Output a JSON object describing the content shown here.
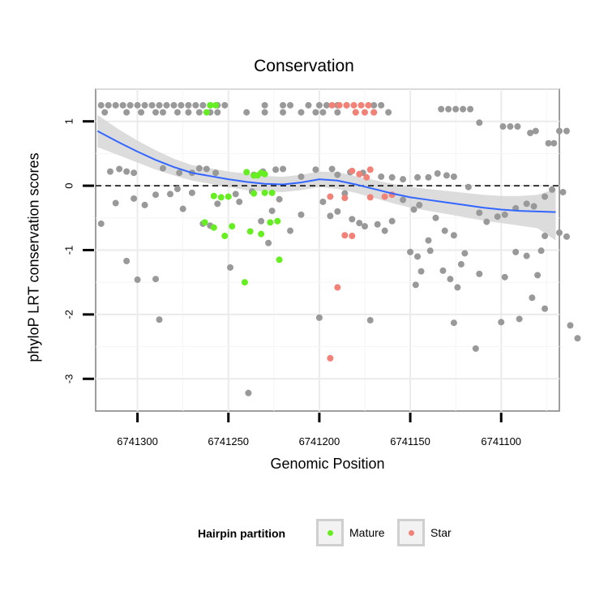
{
  "chart_data": {
    "type": "scatter",
    "title": "Conservation",
    "xlabel": "Genomic Position",
    "ylabel": "phyloP LRT conservation scores",
    "x_reversed": true,
    "xlim": [
      6741323,
      6741068
    ],
    "ylim": [
      -3.5,
      1.5
    ],
    "x_ticks": [
      6741300,
      6741250,
      6741200,
      6741150,
      6741100
    ],
    "y_ticks": [
      -3,
      -2,
      -1,
      0,
      1
    ],
    "grid": true,
    "reference_line": {
      "y": 0,
      "style": "dashed"
    },
    "legend": {
      "title": "Hairpin partition",
      "position": "bottom",
      "entries": [
        {
          "label": "Mature",
          "color": "#66ee22"
        },
        {
          "label": "Star",
          "color": "#f28177"
        }
      ]
    },
    "colors": {
      "other": "#999999",
      "Mature": "#66ee22",
      "Star": "#f28177",
      "smooth": "#3366ff",
      "band": "#d6d6d6"
    },
    "smooth": {
      "x": [
        6741322,
        6741310,
        6741300,
        6741290,
        6741280,
        6741270,
        6741260,
        6741250,
        6741240,
        6741230,
        6741220,
        6741210,
        6741200,
        6741190,
        6741180,
        6741170,
        6741160,
        6741150,
        6741140,
        6741130,
        6741120,
        6741110,
        6741100,
        6741090,
        6741080,
        6741070
      ],
      "y": [
        0.85,
        0.67,
        0.53,
        0.4,
        0.29,
        0.2,
        0.15,
        0.1,
        0.06,
        0.03,
        0.02,
        0.05,
        0.1,
        0.08,
        0.02,
        -0.05,
        -0.12,
        -0.18,
        -0.22,
        -0.26,
        -0.3,
        -0.34,
        -0.37,
        -0.39,
        -0.4,
        -0.41
      ],
      "lower": [
        0.6,
        0.47,
        0.36,
        0.25,
        0.16,
        0.08,
        0.03,
        -0.02,
        -0.07,
        -0.09,
        -0.1,
        -0.07,
        -0.02,
        -0.05,
        -0.11,
        -0.19,
        -0.27,
        -0.34,
        -0.39,
        -0.44,
        -0.49,
        -0.54,
        -0.58,
        -0.62,
        -0.66,
        -0.85
      ],
      "upper": [
        1.1,
        0.87,
        0.7,
        0.55,
        0.42,
        0.32,
        0.27,
        0.22,
        0.19,
        0.15,
        0.14,
        0.17,
        0.22,
        0.21,
        0.15,
        0.09,
        0.03,
        -0.02,
        -0.05,
        -0.08,
        -0.11,
        -0.14,
        -0.16,
        -0.16,
        -0.14,
        -0.05
      ]
    },
    "series": [
      {
        "name": "other",
        "points": [
          [
            6741320,
            1.25
          ],
          [
            6741316,
            1.25
          ],
          [
            6741312,
            1.25
          ],
          [
            6741308,
            1.25
          ],
          [
            6741304,
            1.25
          ],
          [
            6741300,
            1.25
          ],
          [
            6741296,
            1.25
          ],
          [
            6741292,
            1.25
          ],
          [
            6741288,
            1.25
          ],
          [
            6741284,
            1.25
          ],
          [
            6741280,
            1.25
          ],
          [
            6741276,
            1.25
          ],
          [
            6741272,
            1.25
          ],
          [
            6741268,
            1.25
          ],
          [
            6741264,
            1.25
          ],
          [
            6741260,
            1.25
          ],
          [
            6741256,
            1.25
          ],
          [
            6741252,
            1.25
          ],
          [
            6741318,
            1.14
          ],
          [
            6741306,
            1.14
          ],
          [
            6741298,
            1.14
          ],
          [
            6741290,
            1.14
          ],
          [
            6741286,
            1.14
          ],
          [
            6741278,
            1.14
          ],
          [
            6741272,
            1.14
          ],
          [
            6741266,
            1.14
          ],
          [
            6741260,
            1.14
          ],
          [
            6741256,
            1.14
          ],
          [
            6741240,
            1.14
          ],
          [
            6741230,
            1.14
          ],
          [
            6741220,
            1.14
          ],
          [
            6741210,
            1.14
          ],
          [
            6741202,
            1.14
          ],
          [
            6741198,
            1.14
          ],
          [
            6741190,
            1.14
          ],
          [
            6741180,
            1.14
          ],
          [
            6741170,
            1.14
          ],
          [
            6741162,
            1.14
          ],
          [
            6741230,
            1.25
          ],
          [
            6741220,
            1.25
          ],
          [
            6741216,
            1.25
          ],
          [
            6741206,
            1.25
          ],
          [
            6741200,
            1.25
          ],
          [
            6741196,
            1.25
          ],
          [
            6741190,
            1.25
          ],
          [
            6741185,
            1.25
          ],
          [
            6741170,
            1.25
          ],
          [
            6741166,
            1.25
          ],
          [
            6741133,
            1.19
          ],
          [
            6741129,
            1.19
          ],
          [
            6741125,
            1.19
          ],
          [
            6741121,
            1.19
          ],
          [
            6741117,
            1.19
          ],
          [
            6741112,
            0.98
          ],
          [
            6741099,
            0.92
          ],
          [
            6741095,
            0.92
          ],
          [
            6741091,
            0.92
          ],
          [
            6741084,
            0.82
          ],
          [
            6741081,
            0.85
          ],
          [
            6741074,
            0.66
          ],
          [
            6741071,
            0.66
          ],
          [
            6741068,
            0.85
          ],
          [
            6741064,
            0.85
          ],
          [
            6741315,
            0.22
          ],
          [
            6741310,
            0.26
          ],
          [
            6741306,
            0.22
          ],
          [
            6741302,
            0.2
          ],
          [
            6741286,
            0.27
          ],
          [
            6741277,
            0.2
          ],
          [
            6741270,
            0.2
          ],
          [
            6741266,
            0.27
          ],
          [
            6741262,
            0.26
          ],
          [
            6741257,
            0.2
          ],
          [
            6741236,
            0.17
          ],
          [
            6741231,
            0.22
          ],
          [
            6741224,
            0.25
          ],
          [
            6741220,
            0.26
          ],
          [
            6741210,
            0.14
          ],
          [
            6741202,
            0.25
          ],
          [
            6741193,
            0.26
          ],
          [
            6741190,
            0.17
          ],
          [
            6741183,
            0.21
          ],
          [
            6741176,
            0.2
          ],
          [
            6741166,
            0.14
          ],
          [
            6741160,
            0.13
          ],
          [
            6741154,
            0.1
          ],
          [
            6741146,
            0.13
          ],
          [
            6741140,
            0.13
          ],
          [
            6741135,
            0.19
          ],
          [
            6741130,
            0.16
          ],
          [
            6741126,
            0.14
          ],
          [
            6741320,
            -0.59
          ],
          [
            6741312,
            -0.27
          ],
          [
            6741302,
            -0.2
          ],
          [
            6741296,
            -0.3
          ],
          [
            6741290,
            -0.14
          ],
          [
            6741282,
            -0.13
          ],
          [
            6741278,
            -0.05
          ],
          [
            6741275,
            -0.36
          ],
          [
            6741270,
            -0.11
          ],
          [
            6741264,
            -0.59
          ],
          [
            6741260,
            -0.62
          ],
          [
            6741256,
            -0.28
          ],
          [
            6741246,
            -0.13
          ],
          [
            6741244,
            -0.25
          ],
          [
            6741237,
            -0.09
          ],
          [
            6741232,
            -0.55
          ],
          [
            6741226,
            -0.39
          ],
          [
            6741222,
            -0.21
          ],
          [
            6741210,
            -0.45
          ],
          [
            6741198,
            -0.25
          ],
          [
            6741194,
            -0.47
          ],
          [
            6741190,
            -0.4
          ],
          [
            6741186,
            -0.12
          ],
          [
            6741182,
            -0.52
          ],
          [
            6741178,
            -0.58
          ],
          [
            6741175,
            -0.63
          ],
          [
            6741168,
            -0.6
          ],
          [
            6741164,
            -0.7
          ],
          [
            6741160,
            -0.55
          ],
          [
            6741154,
            -0.22
          ],
          [
            6741148,
            -0.37
          ],
          [
            6741145,
            -0.3
          ],
          [
            6741140,
            -0.85
          ],
          [
            6741136,
            -0.5
          ],
          [
            6741131,
            -0.7
          ],
          [
            6741126,
            -0.77
          ],
          [
            6741118,
            -0.02
          ],
          [
            6741112,
            -0.42
          ],
          [
            6741108,
            -0.56
          ],
          [
            6741102,
            -0.48
          ],
          [
            6741098,
            -0.45
          ],
          [
            6741092,
            -0.35
          ],
          [
            6741086,
            -0.28
          ],
          [
            6741082,
            -0.32
          ],
          [
            6741076,
            -0.17
          ],
          [
            6741072,
            -0.06
          ],
          [
            6741066,
            -0.1
          ],
          [
            6741064,
            -0.79
          ],
          [
            6741068,
            -0.73
          ],
          [
            6741076,
            -0.78
          ],
          [
            6741228,
            -0.89
          ],
          [
            6741216,
            -0.7
          ],
          [
            6741150,
            -1.03
          ],
          [
            6741146,
            -1.1
          ],
          [
            6741139,
            -1.01
          ],
          [
            6741122,
            -1.22
          ],
          [
            6741120,
            -1.05
          ],
          [
            6741092,
            -1.03
          ],
          [
            6741086,
            -1.09
          ],
          [
            6741078,
            -1.01
          ],
          [
            6741306,
            -1.17
          ],
          [
            6741249,
            -1.27
          ],
          [
            6741144,
            -1.33
          ],
          [
            6741132,
            -1.32
          ],
          [
            6741128,
            -1.45
          ],
          [
            6741124,
            -1.58
          ],
          [
            6741112,
            -1.37
          ],
          [
            6741098,
            -1.42
          ],
          [
            6741080,
            -1.39
          ],
          [
            6741300,
            -1.46
          ],
          [
            6741290,
            -1.45
          ],
          [
            6741147,
            -1.54
          ],
          [
            6741083,
            -1.74
          ],
          [
            6741288,
            -2.08
          ],
          [
            6741200,
            -2.05
          ],
          [
            6741172,
            -2.09
          ],
          [
            6741126,
            -2.13
          ],
          [
            6741114,
            -2.53
          ],
          [
            6741100,
            -2.12
          ],
          [
            6741090,
            -2.07
          ],
          [
            6741076,
            -1.91
          ],
          [
            6741062,
            -2.17
          ],
          [
            6741058,
            -2.37
          ],
          [
            6741239,
            -3.22
          ]
        ]
      },
      {
        "name": "Mature",
        "points": [
          [
            6741260,
            1.25
          ],
          [
            6741257,
            1.25
          ],
          [
            6741262,
            1.14
          ],
          [
            6741240,
            0.21
          ],
          [
            6741236,
            0.16
          ],
          [
            6741234,
            0.16
          ],
          [
            6741232,
            0.2
          ],
          [
            6741230,
            0.18
          ],
          [
            6741254,
            -0.18
          ],
          [
            6741250,
            -0.17
          ],
          [
            6741258,
            -0.16
          ],
          [
            6741236,
            -0.12
          ],
          [
            6741230,
            -0.11
          ],
          [
            6741226,
            -0.11
          ],
          [
            6741263,
            -0.57
          ],
          [
            6741258,
            -0.65
          ],
          [
            6741248,
            -0.63
          ],
          [
            6741238,
            -0.71
          ],
          [
            6741232,
            -0.75
          ],
          [
            6741227,
            -0.57
          ],
          [
            6741223,
            -0.55
          ],
          [
            6741252,
            -0.78
          ],
          [
            6741222,
            -1.15
          ],
          [
            6741241,
            -1.5
          ]
        ]
      },
      {
        "name": "Star",
        "points": [
          [
            6741193,
            1.25
          ],
          [
            6741189,
            1.25
          ],
          [
            6741185,
            1.25
          ],
          [
            6741181,
            1.25
          ],
          [
            6741177,
            1.25
          ],
          [
            6741173,
            1.25
          ],
          [
            6741180,
            1.14
          ],
          [
            6741175,
            1.14
          ],
          [
            6741170,
            1.14
          ],
          [
            6741182,
            0.23
          ],
          [
            6741178,
            0.18
          ],
          [
            6741172,
            0.25
          ],
          [
            6741174,
            0.13
          ],
          [
            6741194,
            -0.17
          ],
          [
            6741186,
            -0.19
          ],
          [
            6741172,
            -0.18
          ],
          [
            6741164,
            -0.17
          ],
          [
            6741160,
            -0.14
          ],
          [
            6741186,
            -0.77
          ],
          [
            6741182,
            -0.78
          ],
          [
            6741190,
            -1.58
          ],
          [
            6741194,
            -2.68
          ]
        ]
      }
    ]
  }
}
